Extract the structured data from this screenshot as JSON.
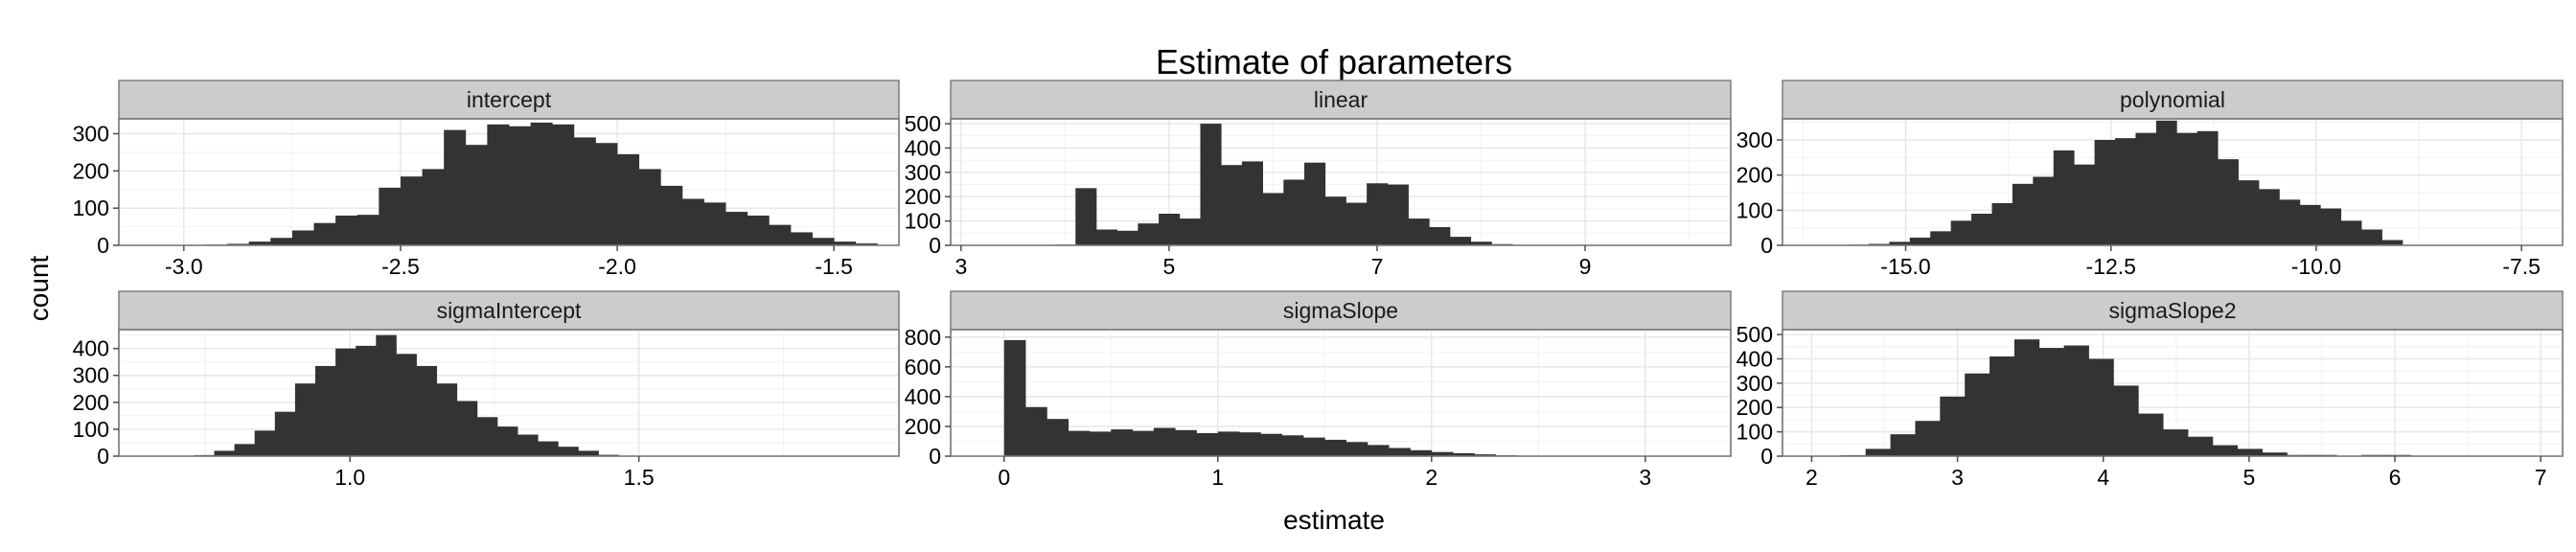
{
  "chart_data": {
    "type": "bar",
    "subtype": "faceted-histogram",
    "title": "Estimate of parameters",
    "xlabel": "estimate",
    "ylabel": "count",
    "grid": true,
    "bar_color": "#333333",
    "strip_color": "#cccccc",
    "facets": [
      {
        "name": "intercept",
        "xlim": [
          -3.15,
          -1.35
        ],
        "xticks": [
          -3.0,
          -2.5,
          -2.0,
          -1.5
        ],
        "xtick_labels": [
          "-3.0",
          "-2.5",
          "-2.0",
          "-1.5"
        ],
        "ylim": [
          0,
          340
        ],
        "yticks": [
          0,
          100,
          200,
          300
        ],
        "yticks_labels": [
          "0",
          "100",
          "200",
          "300"
        ],
        "bins_start": -2.95,
        "bin_width": 0.05,
        "counts": [
          2,
          4,
          10,
          20,
          40,
          60,
          80,
          82,
          155,
          185,
          205,
          310,
          270,
          325,
          320,
          330,
          325,
          290,
          275,
          245,
          205,
          160,
          125,
          115,
          90,
          80,
          55,
          35,
          20,
          10,
          5
        ]
      },
      {
        "name": "linear",
        "xlim": [
          2.9,
          10.4
        ],
        "xticks": [
          3,
          5,
          7,
          9
        ],
        "xtick_labels": [
          "3",
          "5",
          "7",
          "9"
        ],
        "ylim": [
          0,
          520
        ],
        "yticks": [
          0,
          100,
          200,
          300,
          400,
          500
        ],
        "yticks_labels": [
          "0",
          "100",
          "200",
          "300",
          "400",
          "500"
        ],
        "bins_start": 3.9,
        "bin_width": 0.2,
        "counts": [
          3,
          235,
          65,
          60,
          90,
          130,
          110,
          500,
          330,
          345,
          215,
          270,
          340,
          200,
          175,
          255,
          250,
          110,
          75,
          35,
          15,
          5
        ]
      },
      {
        "name": "polynomial",
        "xlim": [
          -16.5,
          -7.0
        ],
        "xticks": [
          -15.0,
          -12.5,
          -10.0,
          -7.5
        ],
        "xtick_labels": [
          "-15.0",
          "-12.5",
          "-10.0",
          "-7.5"
        ],
        "ylim": [
          0,
          360
        ],
        "yticks": [
          0,
          100,
          200,
          300
        ],
        "yticks_labels": [
          "0",
          "100",
          "200",
          "300"
        ],
        "bins_start": -15.7,
        "bin_width": 0.25,
        "counts": [
          2,
          4,
          10,
          22,
          40,
          70,
          90,
          120,
          175,
          195,
          270,
          230,
          300,
          305,
          320,
          355,
          320,
          325,
          245,
          185,
          160,
          130,
          115,
          105,
          70,
          45,
          15
        ]
      },
      {
        "name": "sigmaIntercept",
        "xlim": [
          0.6,
          1.95
        ],
        "xticks": [
          1.0,
          1.5
        ],
        "xtick_labels": [
          "1.0",
          "1.5"
        ],
        "ylim": [
          0,
          470
        ],
        "yticks": [
          0,
          100,
          200,
          300,
          400
        ],
        "yticks_labels": [
          "0",
          "100",
          "200",
          "300",
          "400"
        ],
        "bins_start": 0.73,
        "bin_width": 0.035,
        "counts": [
          4,
          20,
          45,
          95,
          165,
          270,
          335,
          400,
          410,
          450,
          380,
          335,
          270,
          205,
          145,
          110,
          80,
          55,
          35,
          20,
          5,
          2
        ]
      },
      {
        "name": "sigmaSlope",
        "xlim": [
          -0.25,
          3.4
        ],
        "xticks": [
          0,
          1,
          2,
          3
        ],
        "xtick_labels": [
          "0",
          "1",
          "2",
          "3"
        ],
        "ylim": [
          0,
          850
        ],
        "yticks": [
          0,
          200,
          400,
          600,
          800
        ],
        "yticks_labels": [
          "0",
          "200",
          "400",
          "600",
          "800"
        ],
        "bins_start": 0.0,
        "bin_width": 0.1,
        "counts": [
          780,
          330,
          250,
          170,
          165,
          180,
          170,
          190,
          175,
          155,
          165,
          160,
          150,
          140,
          125,
          110,
          95,
          75,
          55,
          40,
          28,
          20,
          12,
          6,
          3,
          1,
          1,
          1
        ]
      },
      {
        "name": "sigmaSlope2",
        "xlim": [
          1.8,
          7.15
        ],
        "xticks": [
          2,
          3,
          4,
          5,
          6,
          7
        ],
        "xtick_labels": [
          "2",
          "3",
          "4",
          "5",
          "6",
          "7"
        ],
        "ylim": [
          0,
          520
        ],
        "yticks": [
          0,
          100,
          200,
          300,
          400,
          500
        ],
        "yticks_labels": [
          "0",
          "100",
          "200",
          "300",
          "400",
          "500"
        ],
        "bins_start": 2.2,
        "bin_width": 0.17,
        "counts": [
          4,
          30,
          90,
          145,
          245,
          340,
          410,
          480,
          445,
          455,
          400,
          290,
          175,
          110,
          80,
          45,
          30,
          15,
          5,
          5,
          2,
          5,
          5
        ]
      }
    ]
  }
}
